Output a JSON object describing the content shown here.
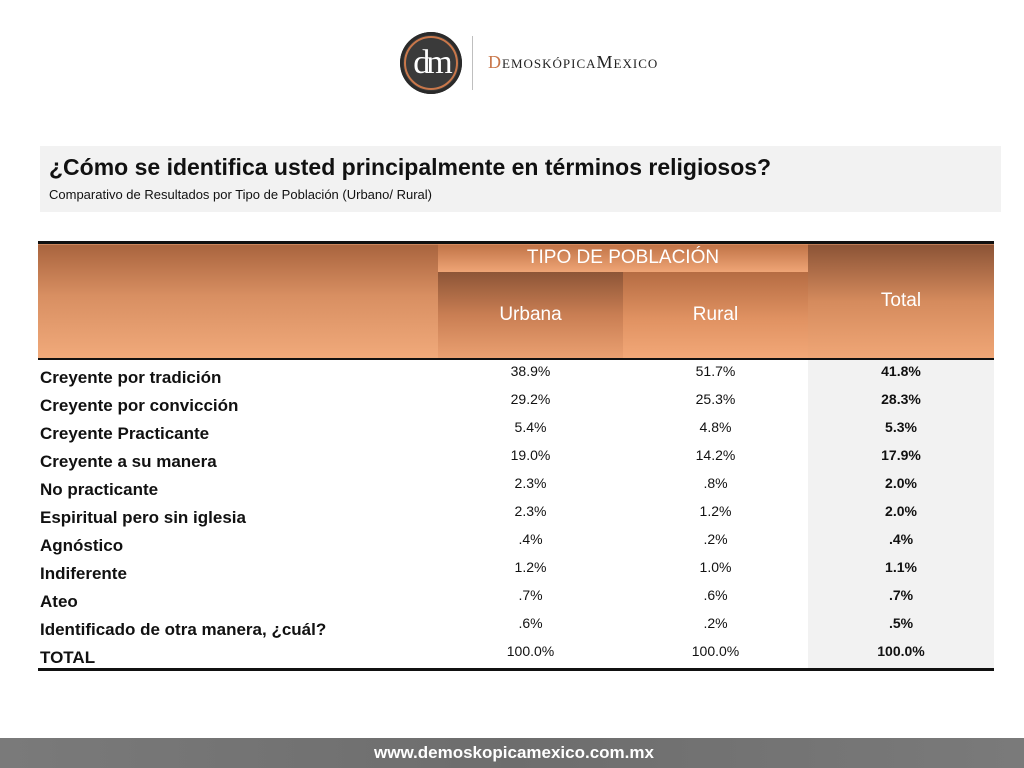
{
  "logo": {
    "mark": "dm",
    "word_lead": "D",
    "word_middle": "EMOSKÓPICA",
    "word_m": "M",
    "word_tail": "ΕΧΙCO"
  },
  "title": {
    "main": "¿Cómo se identifica usted principalmente en términos religiosos?",
    "sub": "Comparativo de Resultados por Tipo de Población (Urbano/ Rural)"
  },
  "table": {
    "group_header": "TIPO DE POBLACIÓN",
    "columns": [
      "Urbana",
      "Rural",
      "Total"
    ],
    "rows": [
      {
        "label": "Creyente por tradición",
        "urbana": "38.9%",
        "rural": "51.7%",
        "total": "41.8%"
      },
      {
        "label": "Creyente por convicción",
        "urbana": "29.2%",
        "rural": "25.3%",
        "total": "28.3%"
      },
      {
        "label": "Creyente Practicante",
        "urbana": "5.4%",
        "rural": "4.8%",
        "total": "5.3%"
      },
      {
        "label": "Creyente a su manera",
        "urbana": "19.0%",
        "rural": "14.2%",
        "total": "17.9%"
      },
      {
        "label": "No practicante",
        "urbana": "2.3%",
        "rural": ".8%",
        "total": "2.0%"
      },
      {
        "label": "Espiritual pero sin iglesia",
        "urbana": "2.3%",
        "rural": "1.2%",
        "total": "2.0%"
      },
      {
        "label": "Agnóstico",
        "urbana": ".4%",
        "rural": ".2%",
        "total": ".4%"
      },
      {
        "label": "Indiferente",
        "urbana": "1.2%",
        "rural": "1.0%",
        "total": "1.1%"
      },
      {
        "label": "Ateo",
        "urbana": ".7%",
        "rural": ".6%",
        "total": ".7%"
      },
      {
        "label": "Identificado de otra manera, ¿cuál?",
        "urbana": ".6%",
        "rural": ".2%",
        "total": ".5%"
      },
      {
        "label": "TOTAL",
        "urbana": "100.0%",
        "rural": "100.0%",
        "total": "100.0%"
      }
    ]
  },
  "footer": {
    "url": "www.demoskopicamexico.com.mx"
  },
  "colors": {
    "accent": "#c9774a",
    "header_light": "#f1aa7b",
    "footer_bg": "#707070"
  }
}
